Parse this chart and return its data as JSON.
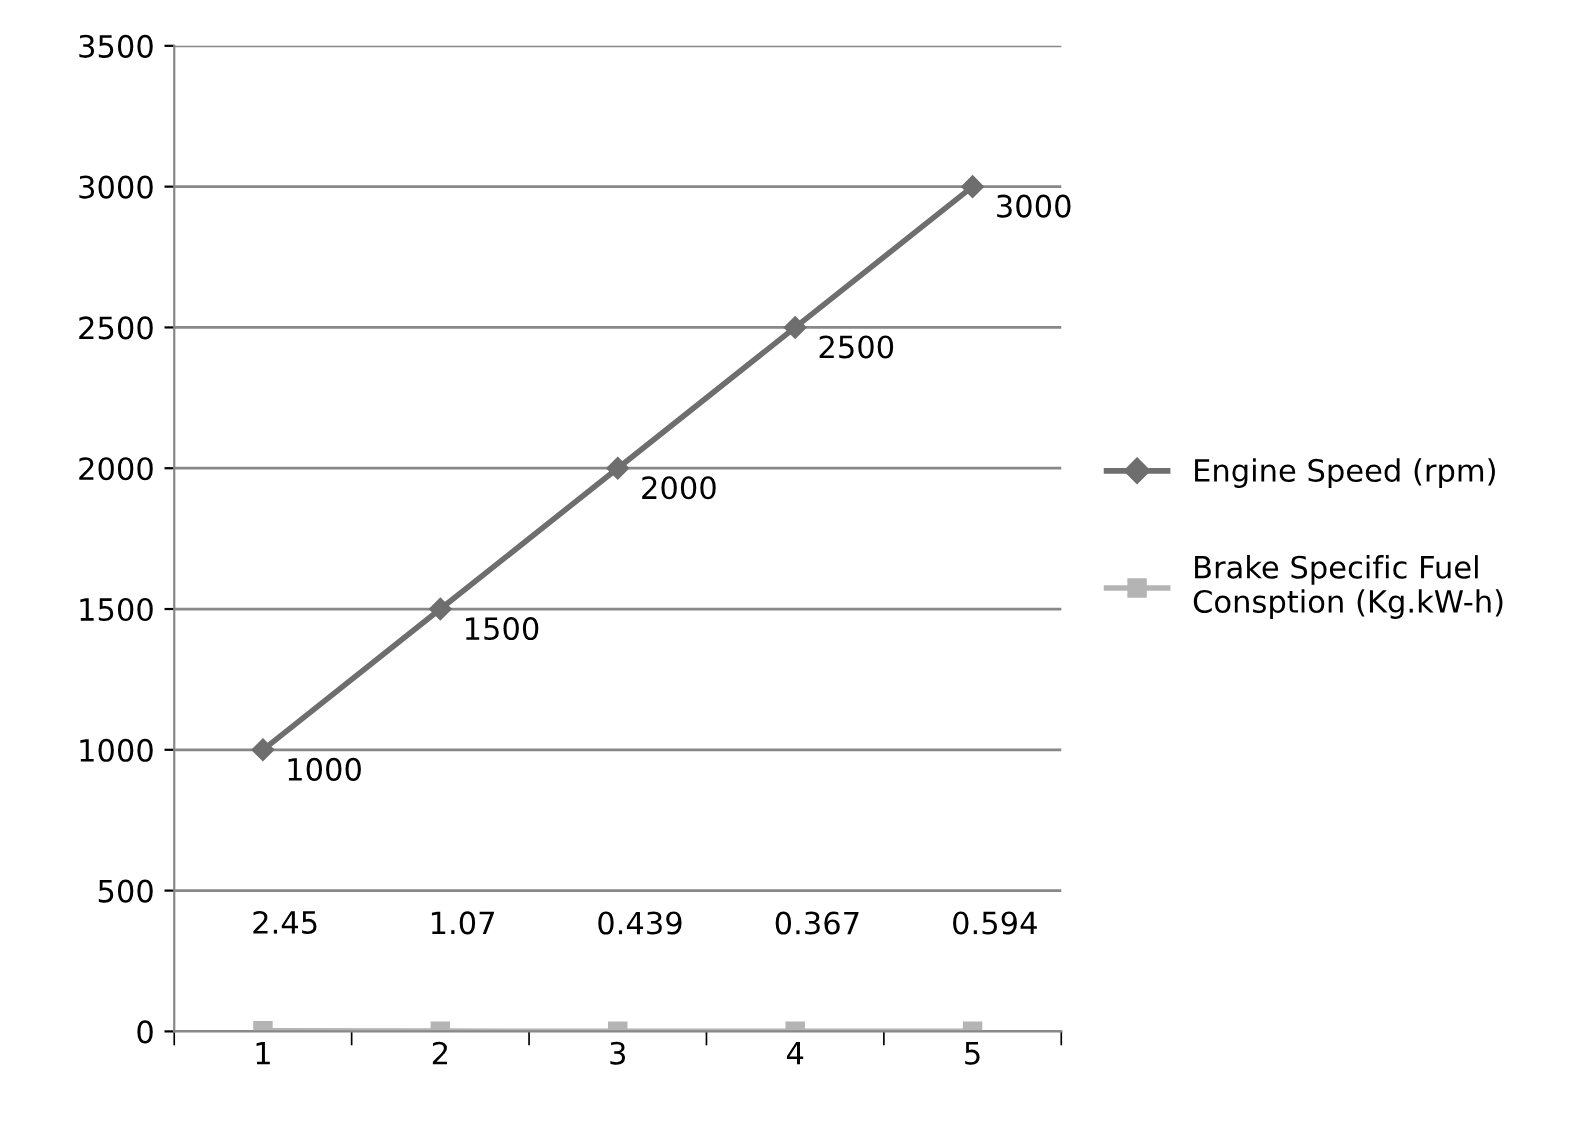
{
  "chart_data": {
    "type": "line",
    "categories": [
      "1",
      "2",
      "3",
      "4",
      "5"
    ],
    "series": [
      {
        "name": "Engine Speed (rpm)",
        "color": "#6e6e6e",
        "marker": "diamond",
        "values": [
          1000,
          1500,
          2000,
          2500,
          3000
        ]
      },
      {
        "name": "Brake Specific Fuel Consption (Kg.kW-h)",
        "color": "#b4b4b4",
        "marker": "square",
        "values": [
          2.45,
          1.07,
          0.439,
          0.367,
          0.594
        ]
      }
    ],
    "ylim": [
      0,
      3500
    ],
    "yticks": [
      0,
      500,
      1000,
      1500,
      2000,
      2500,
      3000,
      3500
    ],
    "grid": "y",
    "legend": "right",
    "data_labels": true,
    "line_style": "solid"
  }
}
